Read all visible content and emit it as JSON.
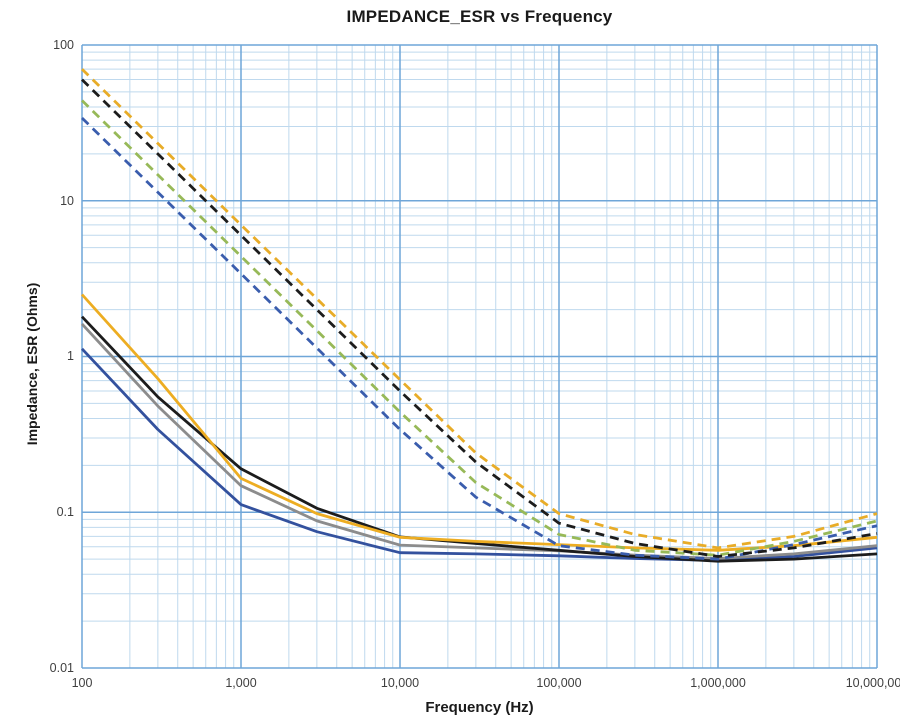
{
  "chart_data": {
    "type": "line",
    "title": "IMPEDANCE_ESR vs Frequency",
    "xlabel": "Frequency (Hz)",
    "ylabel": "Impedance, ESR (Ohms)",
    "x_scale": "log",
    "y_scale": "log",
    "xlim": [
      100,
      10000000
    ],
    "ylim": [
      0.01,
      100
    ],
    "x_tick_labels": [
      "100",
      "1,000",
      "10,000",
      "100,000",
      "1,000,000",
      "10,000,000"
    ],
    "y_tick_labels": [
      "100",
      "10",
      "1",
      "0.1",
      "0.01"
    ],
    "grid": {
      "major_color": "#6FA6D8",
      "minor_color": "#BFD9EE",
      "background": "#FFFFFF"
    },
    "legend_position": "none",
    "series": [
      {
        "name": "esr-solid-blue",
        "line_style": "solid",
        "color": "#33519E",
        "points": [
          [
            100,
            1.12
          ],
          [
            300,
            0.34
          ],
          [
            1000,
            0.112
          ],
          [
            3000,
            0.075
          ],
          [
            10000,
            0.055
          ],
          [
            30000,
            0.054
          ],
          [
            100000,
            0.0525
          ],
          [
            300000,
            0.0505
          ],
          [
            1000000,
            0.049
          ],
          [
            3000000,
            0.052
          ],
          [
            10000000,
            0.059
          ]
        ]
      },
      {
        "name": "esr-solid-gray",
        "line_style": "solid",
        "color": "#8C8C8C",
        "points": [
          [
            100,
            1.62
          ],
          [
            300,
            0.48
          ],
          [
            1000,
            0.148
          ],
          [
            3000,
            0.088
          ],
          [
            10000,
            0.0615
          ],
          [
            30000,
            0.059
          ],
          [
            100000,
            0.0565
          ],
          [
            300000,
            0.053
          ],
          [
            1000000,
            0.0505
          ],
          [
            3000000,
            0.054
          ],
          [
            10000000,
            0.061
          ]
        ]
      },
      {
        "name": "esr-solid-black",
        "line_style": "solid",
        "color": "#1C1C1C",
        "points": [
          [
            100,
            1.8
          ],
          [
            300,
            0.55
          ],
          [
            1000,
            0.19
          ],
          [
            3000,
            0.106
          ],
          [
            10000,
            0.0695
          ],
          [
            30000,
            0.063
          ],
          [
            100000,
            0.057
          ],
          [
            300000,
            0.052
          ],
          [
            1000000,
            0.0485
          ],
          [
            3000000,
            0.05
          ],
          [
            10000000,
            0.054
          ]
        ]
      },
      {
        "name": "esr-solid-orange",
        "line_style": "solid",
        "color": "#EDAD22",
        "points": [
          [
            100,
            2.5
          ],
          [
            300,
            0.72
          ],
          [
            1000,
            0.165
          ],
          [
            3000,
            0.098
          ],
          [
            10000,
            0.069
          ],
          [
            30000,
            0.065
          ],
          [
            100000,
            0.062
          ],
          [
            300000,
            0.059
          ],
          [
            1000000,
            0.057
          ],
          [
            3000000,
            0.061
          ],
          [
            10000000,
            0.069
          ]
        ]
      },
      {
        "name": "impedance-dashed-blue",
        "line_style": "dashed",
        "color": "#3A5DAD",
        "points": [
          [
            100,
            34
          ],
          [
            1000,
            3.4
          ],
          [
            10000,
            0.34
          ],
          [
            30000,
            0.125
          ],
          [
            100000,
            0.061
          ],
          [
            300000,
            0.053
          ],
          [
            1000000,
            0.05
          ],
          [
            3000000,
            0.062
          ],
          [
            10000000,
            0.082
          ]
        ]
      },
      {
        "name": "impedance-dashed-green",
        "line_style": "dashed",
        "color": "#97B958",
        "points": [
          [
            100,
            44
          ],
          [
            1000,
            4.4
          ],
          [
            10000,
            0.44
          ],
          [
            30000,
            0.155
          ],
          [
            100000,
            0.072
          ],
          [
            300000,
            0.057
          ],
          [
            1000000,
            0.053
          ],
          [
            3000000,
            0.065
          ],
          [
            10000000,
            0.088
          ]
        ]
      },
      {
        "name": "impedance-dashed-black",
        "line_style": "dashed",
        "color": "#1C1C1C",
        "points": [
          [
            100,
            60
          ],
          [
            1000,
            6.0
          ],
          [
            10000,
            0.6
          ],
          [
            30000,
            0.21
          ],
          [
            100000,
            0.085
          ],
          [
            300000,
            0.063
          ],
          [
            1000000,
            0.052
          ],
          [
            3000000,
            0.059
          ],
          [
            10000000,
            0.073
          ]
        ]
      },
      {
        "name": "impedance-dashed-orange",
        "line_style": "dashed",
        "color": "#E8AC28",
        "points": [
          [
            100,
            70
          ],
          [
            1000,
            7.0
          ],
          [
            10000,
            0.71
          ],
          [
            30000,
            0.24
          ],
          [
            100000,
            0.098
          ],
          [
            300000,
            0.072
          ],
          [
            1000000,
            0.059
          ],
          [
            3000000,
            0.07
          ],
          [
            10000000,
            0.098
          ]
        ]
      }
    ]
  }
}
